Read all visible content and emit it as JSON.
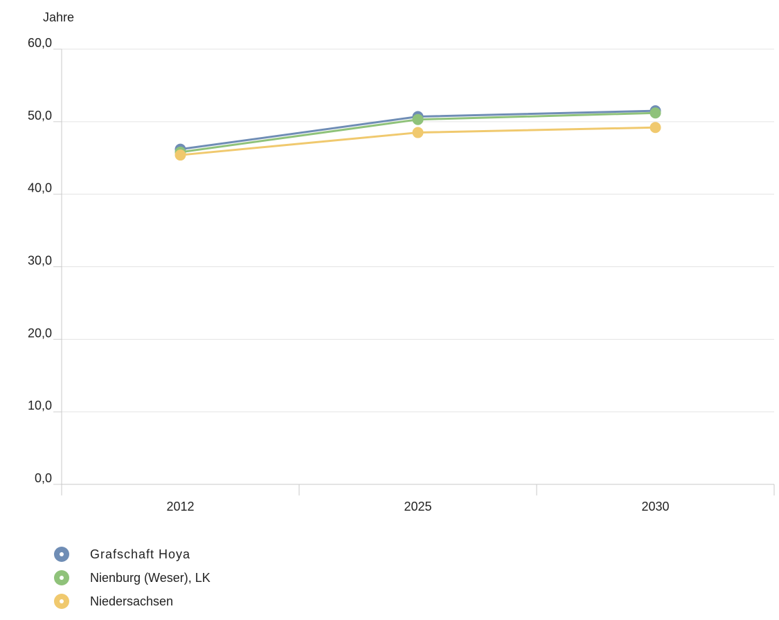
{
  "chart_data": {
    "type": "line",
    "ylabel": "Jahre",
    "ylim": [
      0,
      60
    ],
    "yticks": [
      "0,0",
      "10,0",
      "20,0",
      "30,0",
      "40,0",
      "50,0",
      "60,0"
    ],
    "categories": [
      "2012",
      "2025",
      "2030"
    ],
    "series": [
      {
        "name": "Grafschaft Hoya",
        "color": "#6f8db5",
        "values": [
          46.2,
          50.7,
          51.5
        ]
      },
      {
        "name": "Nienburg (Weser), LK",
        "color": "#8fc27a",
        "values": [
          45.8,
          50.3,
          51.2
        ]
      },
      {
        "name": "Niedersachsen",
        "color": "#f0c96e",
        "values": [
          45.4,
          48.5,
          49.2
        ]
      }
    ],
    "grid": true,
    "legend_position": "bottom-left"
  }
}
